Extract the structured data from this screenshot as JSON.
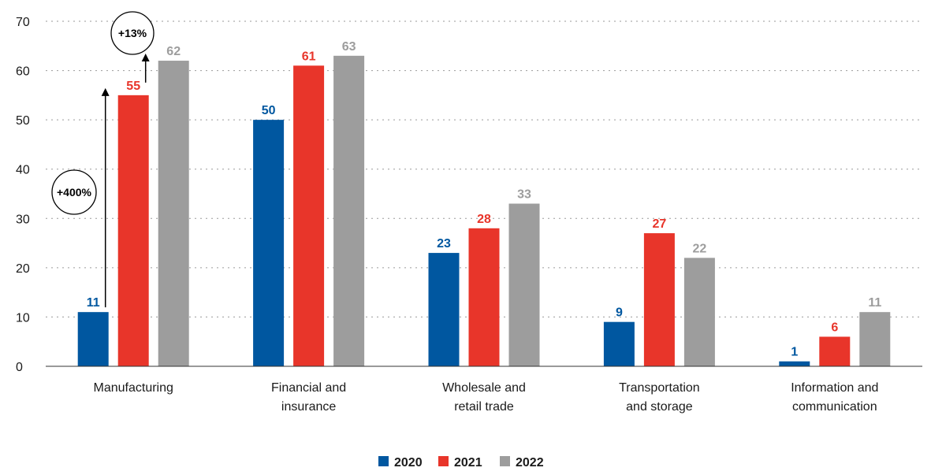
{
  "chart_data": {
    "type": "bar",
    "categories": [
      [
        "Manufacturing"
      ],
      [
        "Financial and",
        "insurance"
      ],
      [
        "Wholesale and",
        "retail trade"
      ],
      [
        "Transportation",
        "and storage"
      ],
      [
        "Information and",
        "communication"
      ]
    ],
    "series": [
      {
        "name": "2020",
        "values": [
          11,
          50,
          23,
          9,
          1
        ],
        "color": "#0057a0"
      },
      {
        "name": "2021",
        "values": [
          55,
          61,
          28,
          27,
          6
        ],
        "color": "#e8352a"
      },
      {
        "name": "2022",
        "values": [
          62,
          63,
          33,
          22,
          11
        ],
        "color": "#9d9d9d"
      }
    ],
    "ylim": [
      0,
      70
    ],
    "yticks": [
      0,
      10,
      20,
      30,
      40,
      50,
      60,
      70
    ],
    "grid": "horizontal dotted",
    "legend_placement": "bottom-center",
    "annotations": [
      {
        "text": "+400%",
        "category": 0,
        "from_series": 0,
        "to_series": 1
      },
      {
        "text": "+13%",
        "category": 0,
        "from_series": 1,
        "to_series": 2
      }
    ]
  }
}
